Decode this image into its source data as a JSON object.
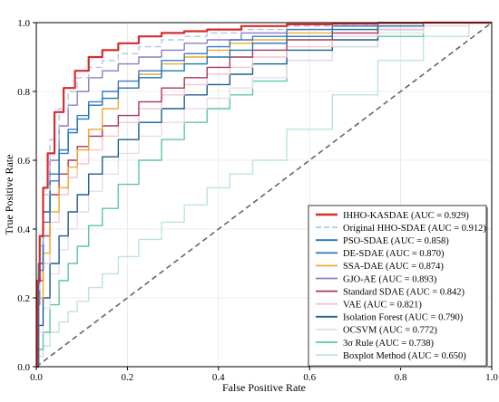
{
  "chart_data": {
    "type": "line",
    "title": "",
    "xlabel": "False Positive Rate",
    "ylabel": "True Positive Rate",
    "xlim": [
      0.0,
      1.0
    ],
    "ylim": [
      0.0,
      1.0
    ],
    "xticks": [
      "0.0",
      "0.2",
      "0.4",
      "0.6",
      "0.8",
      "1.0"
    ],
    "yticks": [
      "0.0",
      "0.2",
      "0.4",
      "0.6",
      "0.8",
      "1.0"
    ],
    "grid": true,
    "legend_position": "lower-right",
    "reference_line": {
      "x": [
        0,
        1
      ],
      "y": [
        0,
        1
      ],
      "color": "#666666",
      "style": "dashed"
    },
    "series": [
      {
        "name": "IHHO-KASDAE (AUC = 0.929)",
        "color": "#d62d2d",
        "style": "solid",
        "x": [
          0,
          0.005,
          0.01,
          0.02,
          0.03,
          0.05,
          0.07,
          0.1,
          0.13,
          0.16,
          0.2,
          0.25,
          0.3,
          0.35,
          0.4,
          0.5,
          0.6,
          0.7,
          0.8,
          0.9,
          1.0
        ],
        "y": [
          0,
          0.25,
          0.38,
          0.52,
          0.62,
          0.74,
          0.81,
          0.86,
          0.9,
          0.92,
          0.94,
          0.96,
          0.97,
          0.975,
          0.98,
          0.99,
          0.995,
          0.997,
          0.999,
          1.0,
          1.0
        ]
      },
      {
        "name": "Original HHO-SDAE (AUC = 0.912)",
        "color": "#aec7e8",
        "style": "dashed",
        "x": [
          0,
          0.005,
          0.01,
          0.02,
          0.04,
          0.06,
          0.08,
          0.1,
          0.13,
          0.16,
          0.2,
          0.25,
          0.3,
          0.35,
          0.4,
          0.5,
          0.6,
          0.7,
          0.8,
          0.9,
          1.0
        ],
        "y": [
          0,
          0.22,
          0.35,
          0.5,
          0.66,
          0.75,
          0.8,
          0.84,
          0.87,
          0.89,
          0.91,
          0.93,
          0.95,
          0.96,
          0.97,
          0.98,
          0.99,
          0.995,
          0.998,
          1.0,
          1.0
        ]
      },
      {
        "name": "PSO-SDAE (AUC = 0.858)",
        "color": "#1f77b4",
        "style": "solid",
        "x": [
          0,
          0.01,
          0.02,
          0.04,
          0.06,
          0.08,
          0.1,
          0.13,
          0.16,
          0.2,
          0.25,
          0.3,
          0.35,
          0.4,
          0.45,
          0.5,
          0.6,
          0.7,
          0.8,
          0.9,
          1.0
        ],
        "y": [
          0,
          0.3,
          0.45,
          0.56,
          0.63,
          0.68,
          0.72,
          0.76,
          0.78,
          0.81,
          0.84,
          0.86,
          0.88,
          0.9,
          0.92,
          0.94,
          0.96,
          0.98,
          0.99,
          1.0,
          1.0
        ]
      },
      {
        "name": "DE-SDAE (AUC = 0.870)",
        "color": "#3a7cc4",
        "style": "solid",
        "x": [
          0,
          0.01,
          0.02,
          0.04,
          0.06,
          0.08,
          0.1,
          0.13,
          0.16,
          0.2,
          0.25,
          0.3,
          0.35,
          0.4,
          0.45,
          0.5,
          0.6,
          0.7,
          0.8,
          0.9,
          1.0
        ],
        "y": [
          0,
          0.28,
          0.42,
          0.54,
          0.62,
          0.69,
          0.73,
          0.77,
          0.8,
          0.83,
          0.86,
          0.89,
          0.91,
          0.93,
          0.95,
          0.96,
          0.98,
          0.99,
          1.0,
          1.0,
          1.0
        ]
      },
      {
        "name": "SSA-DAE (AUC = 0.874)",
        "color": "#f0a830",
        "style": "solid",
        "x": [
          0,
          0.01,
          0.02,
          0.04,
          0.06,
          0.08,
          0.1,
          0.13,
          0.16,
          0.2,
          0.25,
          0.3,
          0.35,
          0.4,
          0.45,
          0.5,
          0.6,
          0.7,
          0.8,
          0.9,
          1.0
        ],
        "y": [
          0,
          0.2,
          0.33,
          0.45,
          0.52,
          0.58,
          0.63,
          0.69,
          0.75,
          0.81,
          0.85,
          0.88,
          0.9,
          0.92,
          0.94,
          0.95,
          0.97,
          0.98,
          0.99,
          1.0,
          1.0
        ]
      },
      {
        "name": "GJO-AE (AUC = 0.893)",
        "color": "#8e7cc3",
        "style": "solid",
        "x": [
          0,
          0.005,
          0.01,
          0.02,
          0.04,
          0.06,
          0.08,
          0.1,
          0.13,
          0.16,
          0.2,
          0.25,
          0.3,
          0.35,
          0.4,
          0.5,
          0.6,
          0.7,
          0.8,
          0.9,
          1.0
        ],
        "y": [
          0,
          0.18,
          0.3,
          0.45,
          0.6,
          0.7,
          0.76,
          0.8,
          0.84,
          0.86,
          0.88,
          0.9,
          0.92,
          0.94,
          0.95,
          0.97,
          0.98,
          0.99,
          1.0,
          1.0,
          1.0
        ]
      },
      {
        "name": "Standard SDAE (AUC = 0.842)",
        "color": "#a8385a",
        "style": "solid",
        "x": [
          0,
          0.01,
          0.02,
          0.04,
          0.06,
          0.08,
          0.1,
          0.13,
          0.16,
          0.2,
          0.25,
          0.3,
          0.35,
          0.4,
          0.45,
          0.5,
          0.6,
          0.7,
          0.8,
          0.9,
          1.0
        ],
        "y": [
          0,
          0.25,
          0.38,
          0.5,
          0.56,
          0.6,
          0.64,
          0.67,
          0.7,
          0.73,
          0.77,
          0.81,
          0.84,
          0.87,
          0.9,
          0.92,
          0.95,
          0.97,
          0.99,
          1.0,
          1.0
        ]
      },
      {
        "name": "VAE (AUC = 0.821)",
        "color": "#f4c6d0",
        "style": "solid",
        "x": [
          0,
          0.01,
          0.02,
          0.04,
          0.06,
          0.08,
          0.1,
          0.13,
          0.16,
          0.2,
          0.25,
          0.3,
          0.35,
          0.4,
          0.45,
          0.5,
          0.6,
          0.7,
          0.8,
          0.9,
          1.0
        ],
        "y": [
          0,
          0.2,
          0.3,
          0.42,
          0.5,
          0.55,
          0.59,
          0.63,
          0.67,
          0.71,
          0.75,
          0.79,
          0.82,
          0.85,
          0.87,
          0.9,
          0.93,
          0.96,
          0.98,
          1.0,
          1.0
        ]
      },
      {
        "name": "Isolation Forest (AUC = 0.790)",
        "color": "#1c5f8f",
        "style": "solid",
        "x": [
          0,
          0.01,
          0.02,
          0.04,
          0.06,
          0.08,
          0.1,
          0.13,
          0.16,
          0.2,
          0.25,
          0.3,
          0.35,
          0.4,
          0.45,
          0.5,
          0.6,
          0.7,
          0.8,
          0.9,
          1.0
        ],
        "y": [
          0,
          0.12,
          0.2,
          0.3,
          0.38,
          0.45,
          0.5,
          0.56,
          0.61,
          0.66,
          0.71,
          0.75,
          0.79,
          0.82,
          0.85,
          0.88,
          0.92,
          0.95,
          0.98,
          1.0,
          1.0
        ]
      },
      {
        "name": "OCSVM (AUC = 0.772)",
        "color": "#e6dcef",
        "style": "solid",
        "x": [
          0,
          0.01,
          0.02,
          0.04,
          0.06,
          0.08,
          0.1,
          0.13,
          0.16,
          0.2,
          0.25,
          0.3,
          0.35,
          0.4,
          0.45,
          0.5,
          0.6,
          0.7,
          0.8,
          0.9,
          1.0
        ],
        "y": [
          0,
          0.1,
          0.17,
          0.27,
          0.34,
          0.4,
          0.45,
          0.51,
          0.56,
          0.62,
          0.67,
          0.71,
          0.75,
          0.78,
          0.81,
          0.84,
          0.89,
          0.93,
          0.97,
          0.99,
          1.0
        ]
      },
      {
        "name": "3σ Rule (AUC = 0.738)",
        "color": "#5cc7a0",
        "style": "solid",
        "x": [
          0,
          0.01,
          0.02,
          0.04,
          0.06,
          0.08,
          0.1,
          0.13,
          0.16,
          0.2,
          0.25,
          0.3,
          0.35,
          0.4,
          0.45,
          0.5,
          0.6,
          0.7,
          0.8,
          0.9,
          1.0
        ],
        "y": [
          0,
          0.05,
          0.1,
          0.18,
          0.25,
          0.3,
          0.35,
          0.41,
          0.46,
          0.53,
          0.6,
          0.66,
          0.71,
          0.75,
          0.79,
          0.83,
          0.89,
          0.93,
          0.96,
          0.99,
          1.0
        ]
      },
      {
        "name": "Boxplot Method (AUC = 0.650)",
        "color": "#bde6d2",
        "style": "solid",
        "x": [
          0,
          0.01,
          0.02,
          0.04,
          0.06,
          0.08,
          0.1,
          0.13,
          0.16,
          0.2,
          0.25,
          0.3,
          0.35,
          0.4,
          0.45,
          0.5,
          0.6,
          0.7,
          0.8,
          0.9,
          1.0
        ],
        "y": [
          0,
          0.03,
          0.06,
          0.1,
          0.13,
          0.16,
          0.19,
          0.23,
          0.27,
          0.32,
          0.37,
          0.42,
          0.47,
          0.52,
          0.56,
          0.6,
          0.69,
          0.79,
          0.89,
          0.96,
          1.0
        ]
      }
    ]
  }
}
